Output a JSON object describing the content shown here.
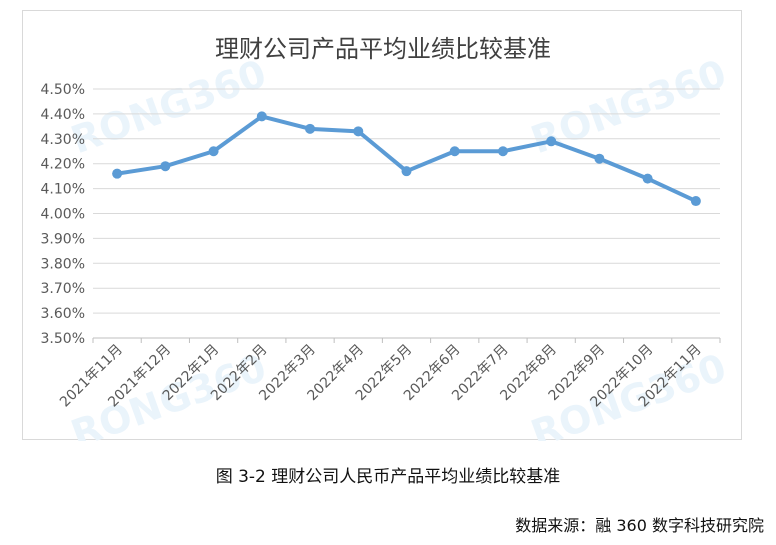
{
  "chart_data": {
    "type": "line",
    "title": "理财公司产品平均业绩比较基准",
    "categories": [
      "2021年11月",
      "2021年12月",
      "2022年1月",
      "2022年2月",
      "2022年3月",
      "2022年4月",
      "2022年5月",
      "2022年6月",
      "2022年7月",
      "2022年8月",
      "2022年9月",
      "2022年10月",
      "2022年11月"
    ],
    "values": [
      4.16,
      4.19,
      4.25,
      4.39,
      4.34,
      4.33,
      4.17,
      4.25,
      4.25,
      4.29,
      4.22,
      4.14,
      4.05
    ],
    "ylim": [
      3.5,
      4.5
    ],
    "yticks": [
      3.5,
      3.6,
      3.7,
      3.8,
      3.9,
      4.0,
      4.1,
      4.2,
      4.3,
      4.4,
      4.5
    ],
    "ytick_labels": [
      "3.50%",
      "3.60%",
      "3.70%",
      "3.80%",
      "3.90%",
      "4.00%",
      "4.10%",
      "4.20%",
      "4.30%",
      "4.40%",
      "4.50%"
    ],
    "grid": true,
    "legend": "none",
    "line_color": "#5b9bd5",
    "watermark": "RONG360"
  },
  "caption": "图 3-2 理财公司人民币产品平均业绩比较基准",
  "source": "数据来源：融 360 数字科技研究院"
}
